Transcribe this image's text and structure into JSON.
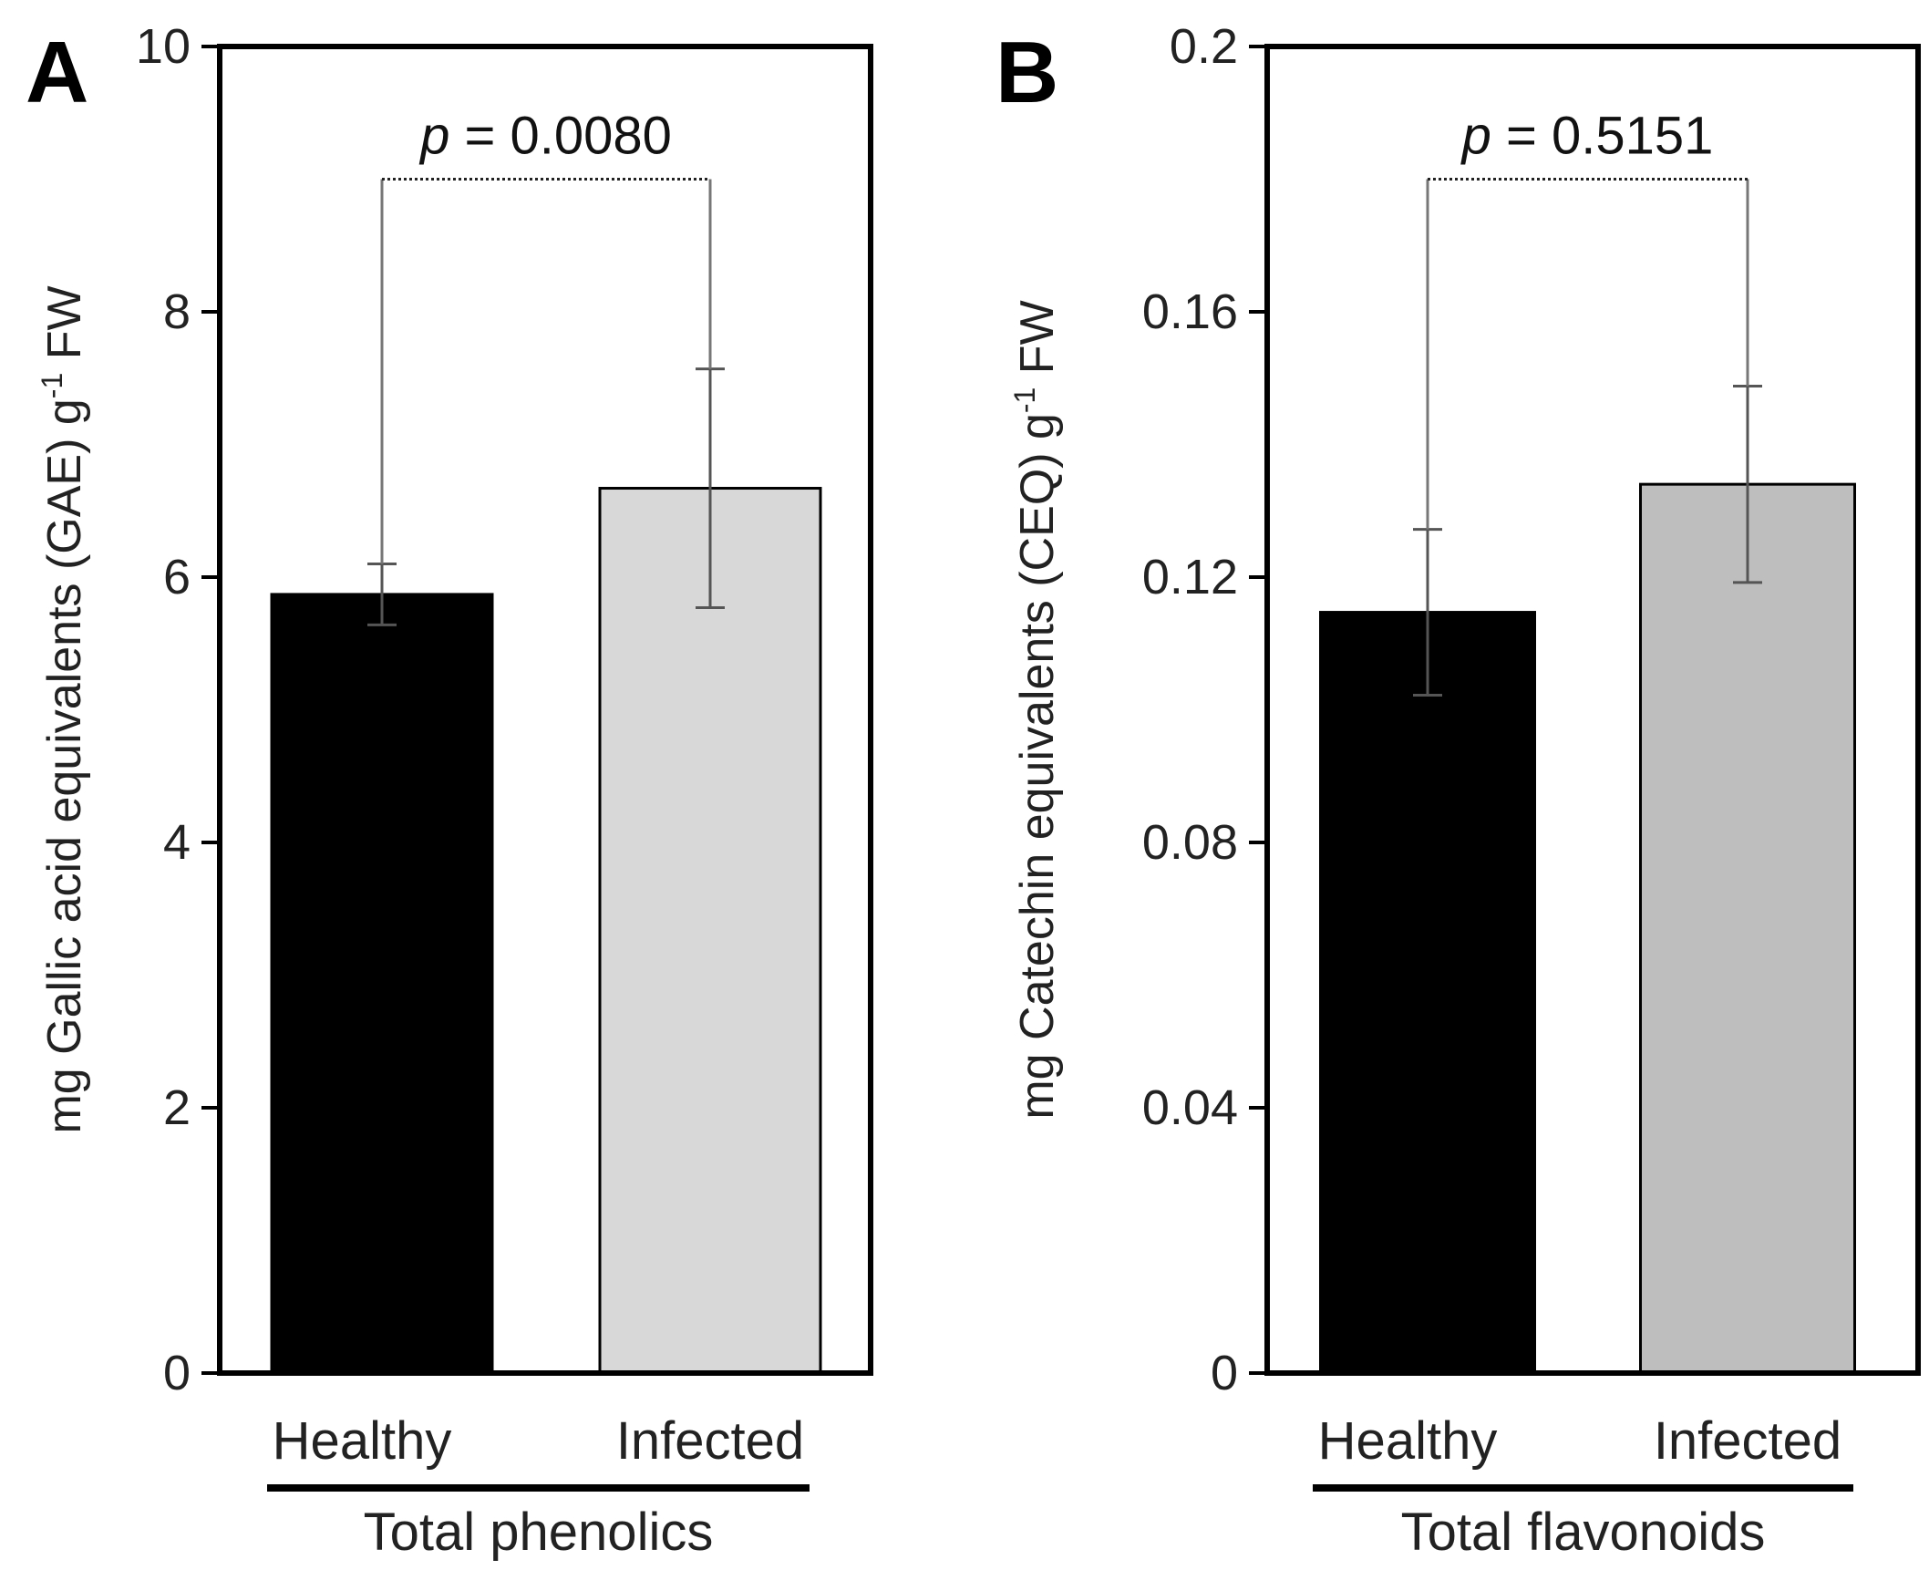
{
  "chart_data": [
    {
      "type": "bar",
      "panel_label": "A",
      "title": "",
      "categories": [
        "Healthy",
        "Infected"
      ],
      "values": [
        5.87,
        6.67
      ],
      "errors": [
        0.23,
        0.9
      ],
      "bar_colors": [
        "#000000",
        "#d8d8d8"
      ],
      "ylabel_main": "mg Gallic acid equivalents (GAE) g",
      "ylabel_sup": "-1",
      "ylabel_tail": " FW",
      "ylim": [
        0,
        10
      ],
      "yticks": [
        0,
        2,
        4,
        6,
        8,
        10
      ],
      "ytick_labels": [
        "0",
        "2",
        "4",
        "6",
        "8",
        "10"
      ],
      "group_label": "Total phenolics",
      "p_italic": "p",
      "p_rest": " = 0.0080",
      "bracket_y": 9.0,
      "grid": false
    },
    {
      "type": "bar",
      "panel_label": "B",
      "title": "",
      "categories": [
        "Healthy",
        "Infected"
      ],
      "values": [
        0.1147,
        0.134
      ],
      "errors": [
        0.0125,
        0.0148
      ],
      "bar_colors": [
        "#000000",
        "#bebebe"
      ],
      "ylabel_main": "mg Catechin equivalents (CEQ) g",
      "ylabel_sup": "-1",
      "ylabel_tail": " FW",
      "ylim": [
        0,
        0.2
      ],
      "yticks": [
        0,
        0.04,
        0.08,
        0.12,
        0.16,
        0.2
      ],
      "ytick_labels": [
        "0",
        "0.04",
        "0.08",
        "0.12",
        "0.16",
        "0.2"
      ],
      "group_label": "Total flavonoids",
      "p_italic": "p",
      "p_rest": " = 0.5151",
      "bracket_y": 0.18,
      "grid": false
    }
  ]
}
